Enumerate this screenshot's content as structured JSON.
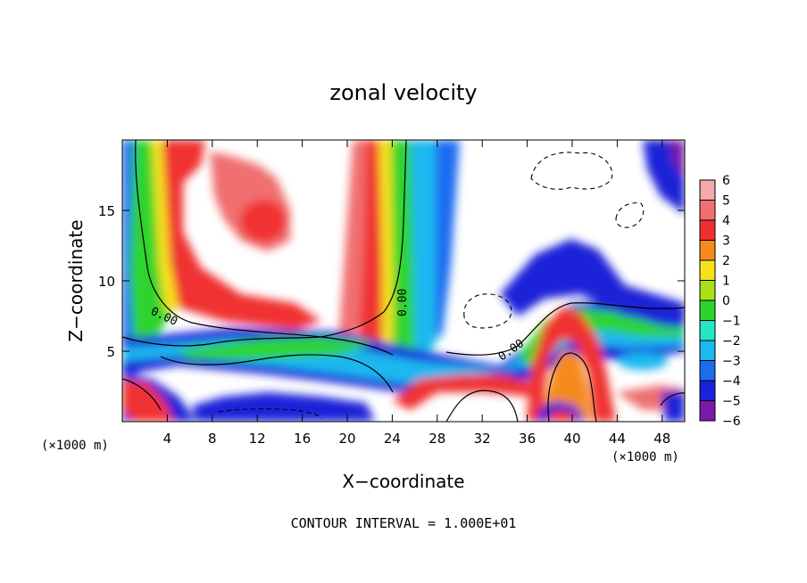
{
  "chart_data": {
    "type": "heatmap",
    "title": "zonal velocity",
    "xlabel": "X−coordinate",
    "ylabel": "Z−coordinate",
    "x_unit_left": "(×1000 m)",
    "x_unit_right": "(×1000 m)",
    "xlim": [
      0,
      50
    ],
    "ylim": [
      0,
      20
    ],
    "x_ticks": [
      4,
      8,
      12,
      16,
      20,
      24,
      28,
      32,
      36,
      40,
      44,
      48
    ],
    "y_ticks": [
      5,
      10,
      15
    ],
    "colorbar": {
      "ticks": [
        6,
        5,
        4,
        3,
        2,
        1,
        0,
        -1,
        -2,
        -3,
        -4,
        -5,
        -6
      ],
      "levels": [
        {
          "value": 5.5,
          "color": "#f4a8a8"
        },
        {
          "value": 4.5,
          "color": "#f07070"
        },
        {
          "value": 3.5,
          "color": "#f03030"
        },
        {
          "value": 2.5,
          "color": "#f58a1c"
        },
        {
          "value": 1.5,
          "color": "#f6e21a"
        },
        {
          "value": 0.5,
          "color": "#a8e01a"
        },
        {
          "value": -0.5,
          "color": "#2ed42e"
        },
        {
          "value": -1.5,
          "color": "#25e6c4"
        },
        {
          "value": -2.5,
          "color": "#1cb8f0"
        },
        {
          "value": -3.5,
          "color": "#1c6cf0"
        },
        {
          "value": -4.5,
          "color": "#1c22d8"
        },
        {
          "value": -5.5,
          "color": "#7a1aa8"
        }
      ]
    },
    "contour_labels": [
      "0.00",
      "0.00",
      "0.00"
    ],
    "footer": "CONTOUR INTERVAL = 1.000E+01"
  }
}
